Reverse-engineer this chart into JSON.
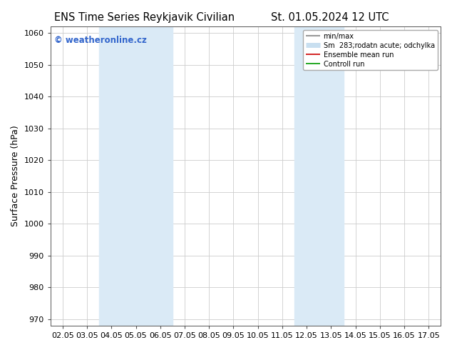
{
  "title_left": "ENS Time Series Reykjavik Civilian",
  "title_right": "St. 01.05.2024 12 UTC",
  "ylabel": "Surface Pressure (hPa)",
  "ylim": [
    968,
    1062
  ],
  "yticks": [
    970,
    980,
    990,
    1000,
    1010,
    1020,
    1030,
    1040,
    1050,
    1060
  ],
  "xtick_labels": [
    "02.05",
    "03.05",
    "04.05",
    "05.05",
    "06.05",
    "07.05",
    "08.05",
    "09.05",
    "10.05",
    "11.05",
    "12.05",
    "13.05",
    "14.05",
    "15.05",
    "16.05",
    "17.05"
  ],
  "shaded_bands": [
    {
      "xstart": 2,
      "xend": 4,
      "color": "#daeaf6"
    },
    {
      "xstart": 10,
      "xend": 11,
      "color": "#daeaf6"
    }
  ],
  "watermark": "© weatheronline.cz",
  "watermark_color": "#3366cc",
  "legend_entries": [
    {
      "label": "min/max",
      "color": "#999999",
      "lw": 1.5
    },
    {
      "label": "Sm  283;rodatn acute; odchylka",
      "color": "#c8dff0",
      "lw": 5
    },
    {
      "label": "Ensemble mean run",
      "color": "#cc0000",
      "lw": 1.2
    },
    {
      "label": "Controll run",
      "color": "#009900",
      "lw": 1.2
    }
  ],
  "background_color": "#ffffff",
  "plot_bg_color": "#ffffff",
  "grid_color": "#cccccc",
  "title_fontsize": 10.5,
  "tick_fontsize": 8,
  "ylabel_fontsize": 9,
  "watermark_fontsize": 8.5,
  "legend_fontsize": 7
}
